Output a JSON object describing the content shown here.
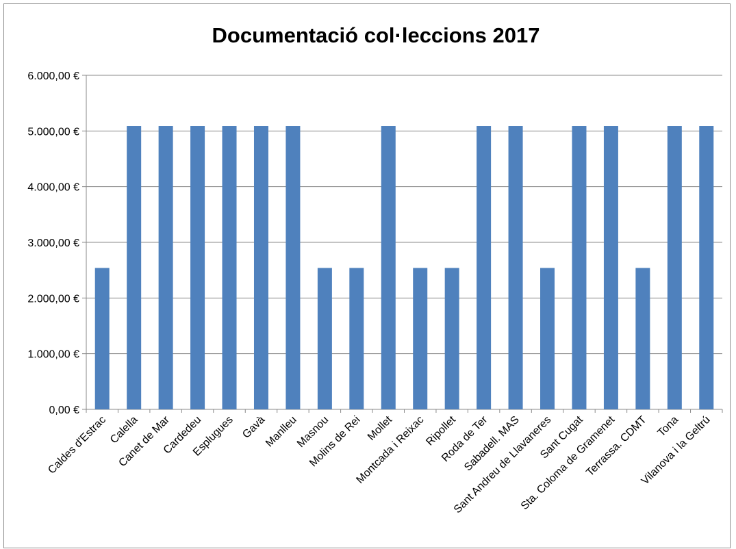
{
  "chart_data": {
    "type": "bar",
    "title": "Documentació col·leccions 2017",
    "xlabel": "",
    "ylabel": "",
    "categories": [
      "Caldes d'Estrac",
      "Calella",
      "Canet de Mar",
      "Cardedeu",
      "Esplugues",
      "Gavà",
      "Manlleu",
      "Masnou",
      "Molins de Rei",
      "Mollet",
      "Montcada i Reixac",
      "Ripollet",
      "Roda de Ter",
      "Sabadell. MAS",
      "Sant Andreu de Llavaneres",
      "Sant Cugat",
      "Sta. Coloma de Gramenet",
      "Terrassa. CDMT",
      "Tona",
      "Vilanova i la Geltrú"
    ],
    "values": [
      2540,
      5090,
      5090,
      5090,
      5090,
      5090,
      5090,
      2540,
      2540,
      5090,
      2540,
      2540,
      5090,
      5090,
      2540,
      5090,
      5090,
      2540,
      5090,
      5090
    ],
    "ylim": [
      0,
      6000
    ],
    "yticks": [
      0,
      1000,
      2000,
      3000,
      4000,
      5000,
      6000
    ],
    "ytick_labels": [
      "0,00 €",
      "1.000,00 €",
      "2.000,00 €",
      "3.000,00 €",
      "4.000,00 €",
      "5.000,00 €",
      "6.000,00 €"
    ],
    "grid": true,
    "bar_color": "#4f81bd",
    "grid_color": "#888888"
  }
}
